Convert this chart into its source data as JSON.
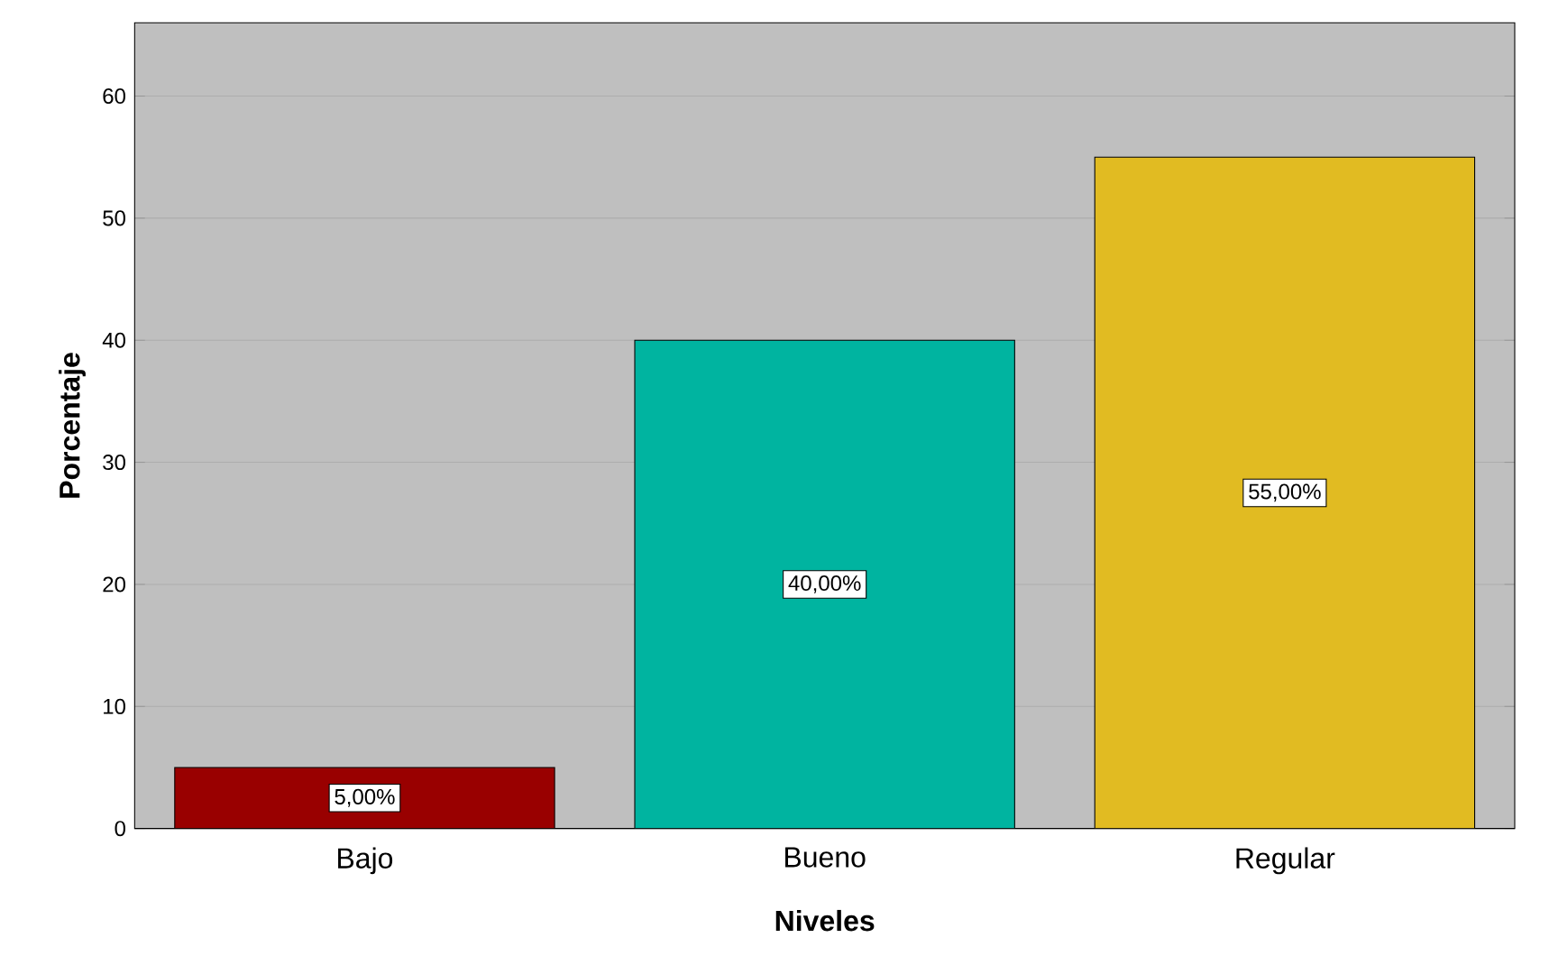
{
  "chart_data": {
    "type": "bar",
    "xlabel": "Niveles",
    "ylabel": "Porcentaje",
    "categories": [
      "Bajo",
      "Bueno",
      "Regular"
    ],
    "values": [
      5,
      40,
      55
    ],
    "colors": [
      "#990000",
      "#00b4a0",
      "#e1bb22"
    ],
    "value_labels": [
      "5,00%",
      "40,00%",
      "55,00%"
    ],
    "ylim": [
      0,
      66
    ],
    "yticks": [
      0,
      10,
      20,
      30,
      40,
      50,
      60
    ],
    "grid": "y"
  }
}
